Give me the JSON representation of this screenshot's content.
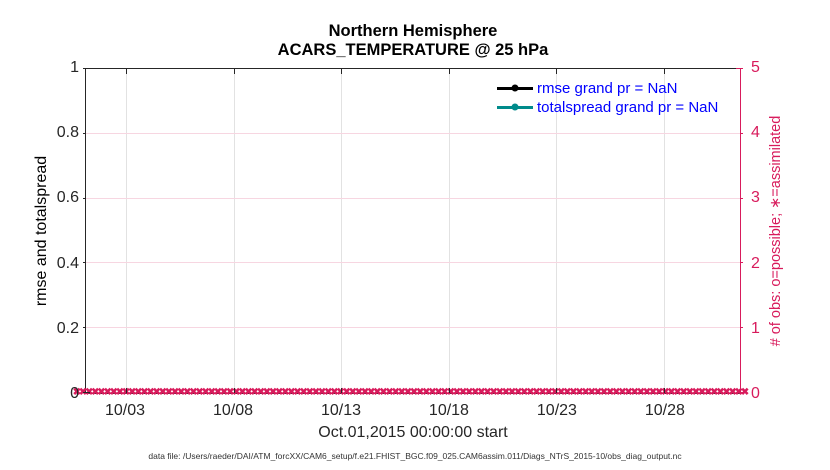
{
  "figure": {
    "title_line1": "Northern Hemisphere",
    "title_line2": "ACARS_TEMPERATURE @ 25 hPa",
    "xlabel": "Oct.01,2015 00:00:00 start",
    "footer": "data file: /Users/raeder/DAI/ATM_forcXX/CAM6_setup/f.e21.FHIST_BGC.f09_025.CAM6assim.011/Diags_NTrS_2015-10/obs_diag_output.nc"
  },
  "left_axis": {
    "label": "rmse and totalspread",
    "ticks": [
      "0",
      "0.2",
      "0.4",
      "0.6",
      "0.8",
      "1"
    ],
    "color": "#262626"
  },
  "right_axis": {
    "label": "# of obs: o=possible; ∗=assimilated",
    "ticks": [
      "0",
      "1",
      "2",
      "3",
      "4",
      "5"
    ],
    "color": "#d81b5c"
  },
  "x_axis": {
    "ticks": [
      "10/03",
      "10/08",
      "10/13",
      "10/18",
      "10/23",
      "10/28"
    ]
  },
  "legend": {
    "text_color": "#0000ff",
    "items": [
      {
        "label": "rmse grand pr = NaN",
        "color": "#000000"
      },
      {
        "label": "totalspread grand pr = NaN",
        "color": "#008b8b"
      }
    ]
  },
  "obs_band": {
    "glyph": "✖",
    "count": 110,
    "color": "#d81b5c",
    "value": 0
  },
  "chart_data": {
    "type": "line",
    "title": "Northern Hemisphere",
    "subtitle": "ACARS_TEMPERATURE @ 25 hPa",
    "xlabel": "Oct.01,2015 00:00:00 start",
    "ylabel": "rmse and totalspread",
    "ylabel_right": "# of obs: o=possible; ∗=assimilated",
    "x_tick_labels": [
      "10/03",
      "10/08",
      "10/13",
      "10/18",
      "10/23",
      "10/28"
    ],
    "xlim": [
      "2015-10-01",
      "2015-10-31"
    ],
    "ylim_left": [
      0,
      1
    ],
    "ylim_right": [
      0,
      5
    ],
    "grid": true,
    "legend_position": "upper right",
    "series": [
      {
        "name": "rmse",
        "legend": "rmse grand pr = NaN",
        "axis": "left",
        "values": "NaN for all times (no curve visible)"
      },
      {
        "name": "totalspread",
        "legend": "totalspread grand pr = NaN",
        "axis": "left",
        "values": "NaN for all times (no curve visible)"
      },
      {
        "name": "obs possible (o markers)",
        "axis": "right",
        "constant_value": 0,
        "note": "0 across entire time range"
      },
      {
        "name": "obs assimilated (x markers)",
        "axis": "right",
        "constant_value": 0,
        "note": "0 across entire time range"
      }
    ]
  }
}
